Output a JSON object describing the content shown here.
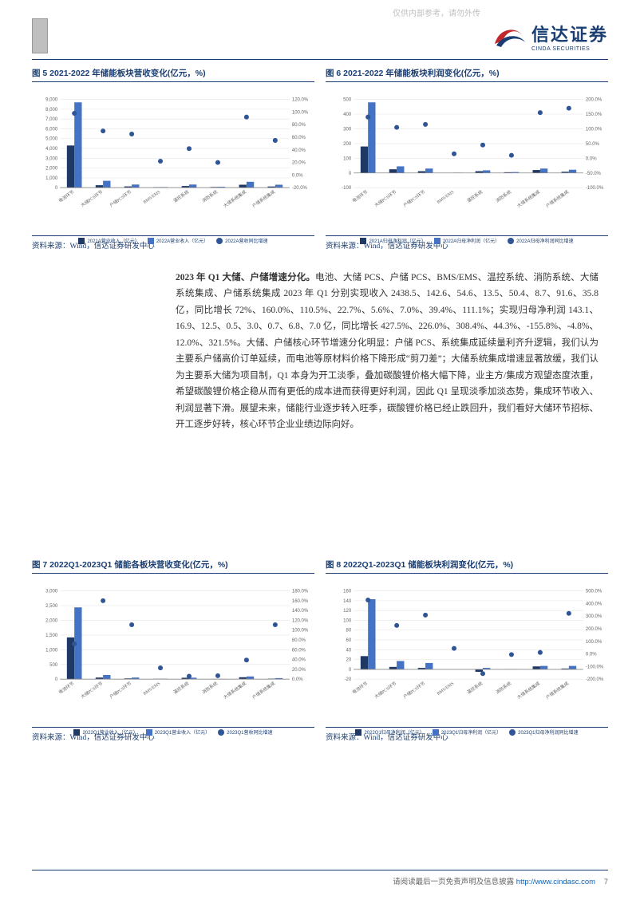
{
  "watermark": "仅供内部参考，请勿外传",
  "brand_cn": "信达证券",
  "brand_en": "CINDA SECURITIES",
  "footer_text": "请阅读最后一页免责声明及信息披露",
  "footer_url": "http://www.cindasc.com",
  "page_number": "7",
  "source_text": "资料来源：Wind，信达证券研发中心",
  "colors": {
    "series2021": "#1f3864",
    "series2022": "#4472c4",
    "growth_dot": "#2f5597",
    "grid": "#e6e6e6",
    "axis": "#888888",
    "title": "#1a3e73"
  },
  "body": {
    "lead": "2023 年 Q1 大储、户储增速分化。",
    "para": "电池、大储 PCS、户储 PCS、BMS/EMS、温控系统、消防系统、大储系统集成、户储系统集成 2023 年 Q1 分别实现收入 2438.5、142.6、54.6、13.5、50.4、8.7、91.6、35.8 亿，同比增长 72%、160.0%、110.5%、22.7%、5.6%、7.0%、39.4%、111.1%；实现归母净利润 143.1、16.9、12.5、0.5、3.0、0.7、6.8、7.0 亿，同比增长 427.5%、226.0%、308.4%、44.3%、-155.8%、-4.8%、12.0%、321.5%。大储、户储核心环节增速分化明显：户储 PCS、系统集成延续量利齐升逻辑，我们认为主要系户储高价订单延续，而电池等原材料价格下降形成“剪刀差”；大储系统集成增速显著放缓，我们认为主要系大储为项目制，Q1 本身为开工淡季，叠加碳酸锂价格大幅下降，业主方/集成方观望态度浓重，希望碳酸锂价格企稳从而有更低的成本进而获得更好利润，因此 Q1 呈现淡季加淡态势，集成环节收入、利润显著下滑。展望未来，储能行业逐步转入旺季，碳酸锂价格已经止跌回升，我们看好大储环节招标、开工逐步好转，核心环节企业业绩边际向好。"
  },
  "categories": [
    "电池环节",
    "大储PCS环节",
    "户储PCS环节",
    "BMS/EMS",
    "温控系统",
    "消防系统",
    "大储系统集成",
    "户储系统集成"
  ],
  "chart5": {
    "title": "图 5  2021-2022 年储能板块营收变化(亿元，%)",
    "type": "bar+line",
    "y1_max": 9000,
    "y1_min": 0,
    "y1_step": 1000,
    "y2_max": 120,
    "y2_min": -20,
    "y2_step": 20,
    "series2021_label": "2021A营业收入（亿元）",
    "series2022_label": "2022A营业收入（亿元）",
    "growth_label": "2022A营收同比增速",
    "bars2021": [
      4300,
      250,
      130,
      40,
      170,
      70,
      300,
      120
    ],
    "bars2022": [
      8700,
      700,
      320,
      60,
      320,
      90,
      600,
      300
    ],
    "growth": [
      98,
      70,
      65,
      22,
      42,
      20,
      92,
      55
    ]
  },
  "chart6": {
    "title": "图 6  2021-2022 年储能板块利润变化(亿元，%)",
    "type": "bar+line",
    "y1_max": 500,
    "y1_min": -100,
    "y1_step": 100,
    "y2_max": 200,
    "y2_min": -100,
    "y2_step": 50,
    "series2021_label": "2021A归母净利润（亿元）",
    "series2022_label": "2022A归母净利润（亿元）",
    "growth_label": "2022A归母净利润同比增速",
    "bars2021": [
      180,
      25,
      12,
      1,
      12,
      5,
      20,
      8
    ],
    "bars2022": [
      480,
      45,
      30,
      2,
      18,
      6,
      30,
      22
    ],
    "growth": [
      140,
      105,
      115,
      15,
      45,
      10,
      155,
      170
    ]
  },
  "chart7": {
    "title": "图 7  2022Q1-2023Q1 储能各板块营收变化(亿元，%)",
    "type": "bar+line",
    "y1_max": 3000,
    "y1_min": 0,
    "y1_step": 500,
    "y2_max": 180,
    "y2_min": 0,
    "y2_step": 20,
    "series1_label": "2022Q1营业收入（亿元）",
    "series2_label": "2023Q1营业收入（亿元）",
    "growth_label": "2023Q1营收同比增速",
    "bars1": [
      1420,
      55,
      26,
      11,
      48,
      8,
      66,
      17
    ],
    "bars2": [
      2440,
      143,
      55,
      14,
      50,
      9,
      92,
      36
    ],
    "growth": [
      72,
      160,
      111,
      23,
      6,
      7,
      39,
      111
    ]
  },
  "chart8": {
    "title": "图 8  2022Q1-2023Q1 储能板块利润变化(亿元，%)",
    "type": "bar+line",
    "y1_max": 160,
    "y1_min": -20,
    "y1_step": 20,
    "y2_max": 500,
    "y2_min": -200,
    "y2_step": 100,
    "series1_label": "2022Q1归母净利润（亿元）",
    "series2_label": "2023Q1归母净利润（亿元）",
    "growth_label": "2023Q1归母净利润同比增速",
    "bars1": [
      27,
      5,
      3,
      0.3,
      -5,
      0.7,
      6,
      1.7
    ],
    "bars2": [
      143,
      17,
      13,
      0.5,
      3,
      0.7,
      7,
      7
    ],
    "growth": [
      428,
      226,
      308,
      44,
      -156,
      -5,
      12,
      322
    ]
  }
}
